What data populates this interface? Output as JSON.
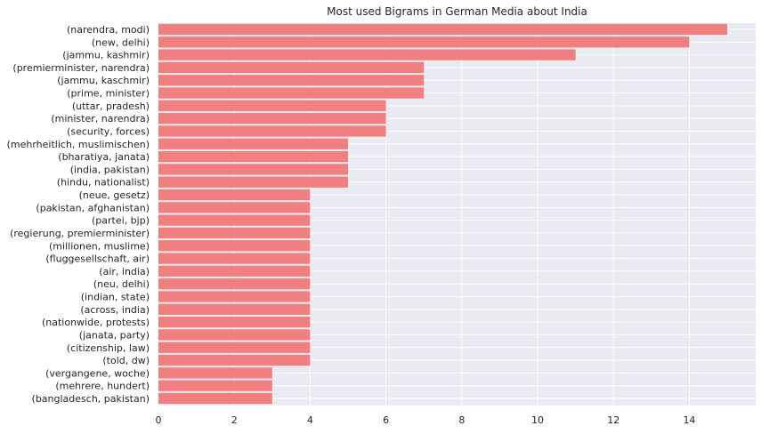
{
  "chart_data": {
    "type": "bar",
    "orientation": "horizontal",
    "title": "Most used Bigrams in German Media about India",
    "xlabel": "",
    "ylabel": "",
    "xlim": [
      0,
      15.75
    ],
    "xticks": [
      0,
      2,
      4,
      6,
      8,
      10,
      12,
      14
    ],
    "grid": true,
    "colors": {
      "bar": "#f08080",
      "plot_background": "#eaeaf2",
      "grid": "#ffffff",
      "text": "#262626"
    },
    "categories": [
      "(narendra, modi)",
      "(new, delhi)",
      "(jammu, kashmir)",
      "(premierminister, narendra)",
      "(jammu, kaschmir)",
      "(prime, minister)",
      "(uttar, pradesh)",
      "(minister, narendra)",
      "(security, forces)",
      "(mehrheitlich, muslimischen)",
      "(bharatiya, janata)",
      "(india, pakistan)",
      "(hindu, nationalist)",
      "(neue, gesetz)",
      "(pakistan, afghanistan)",
      "(partei, bjp)",
      "(regierung, premierminister)",
      "(millionen, muslime)",
      "(fluggesellschaft, air)",
      "(air, india)",
      "(neu, delhi)",
      "(indian, state)",
      "(across, india)",
      "(nationwide, protests)",
      "(janata, party)",
      "(citizenship, law)",
      "(told, dw)",
      "(vergangene, woche)",
      "(mehrere, hundert)",
      "(bangladesch, pakistan)"
    ],
    "values": [
      15,
      14,
      11,
      7,
      7,
      7,
      6,
      6,
      6,
      5,
      5,
      5,
      5,
      4,
      4,
      4,
      4,
      4,
      4,
      4,
      4,
      4,
      4,
      4,
      4,
      4,
      4,
      3,
      3,
      3
    ]
  }
}
